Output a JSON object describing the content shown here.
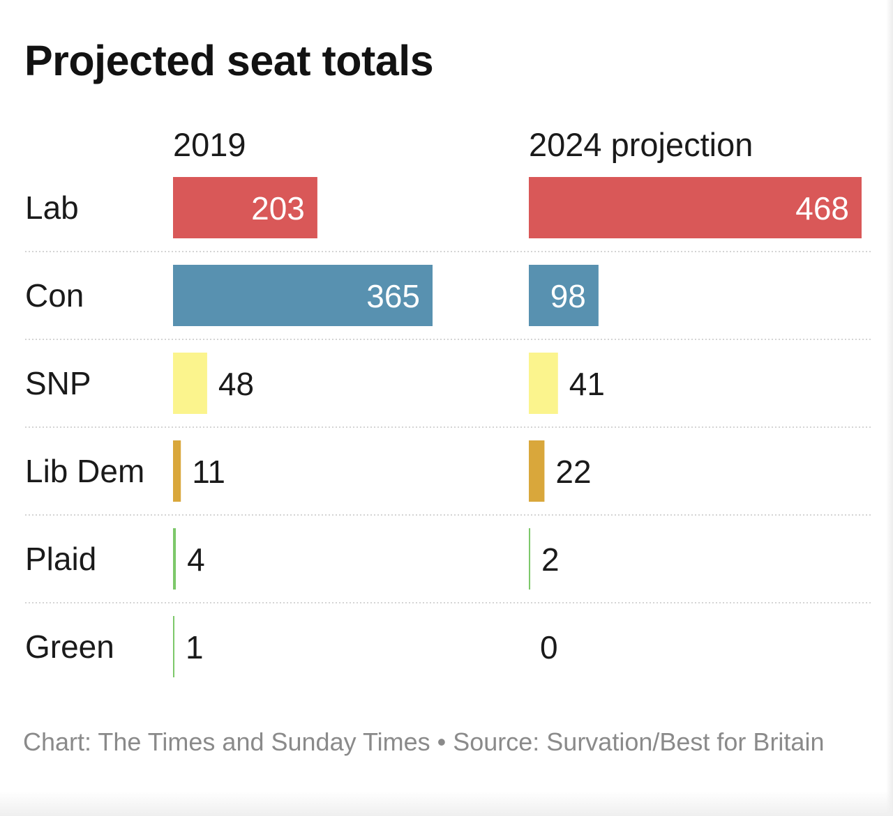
{
  "title": "Projected seat totals",
  "source": "Chart: The Times and Sunday Times • Source: Survation/Best for Britain",
  "chart_data": {
    "type": "bar",
    "title": "Projected seat totals",
    "categories": [
      "Lab",
      "Con",
      "SNP",
      "Lib Dem",
      "Plaid",
      "Green"
    ],
    "colors": [
      "#d95858",
      "#5891b0",
      "#fbf48d",
      "#d9a73b",
      "#7dc86a",
      "#7dc86a"
    ],
    "series": [
      {
        "name": "2019",
        "values": [
          203,
          365,
          48,
          11,
          4,
          1
        ]
      },
      {
        "name": "2024 projection",
        "values": [
          468,
          98,
          41,
          22,
          2,
          0
        ]
      }
    ],
    "ylim": [
      0,
      470
    ],
    "grid": false,
    "legend": "none"
  }
}
